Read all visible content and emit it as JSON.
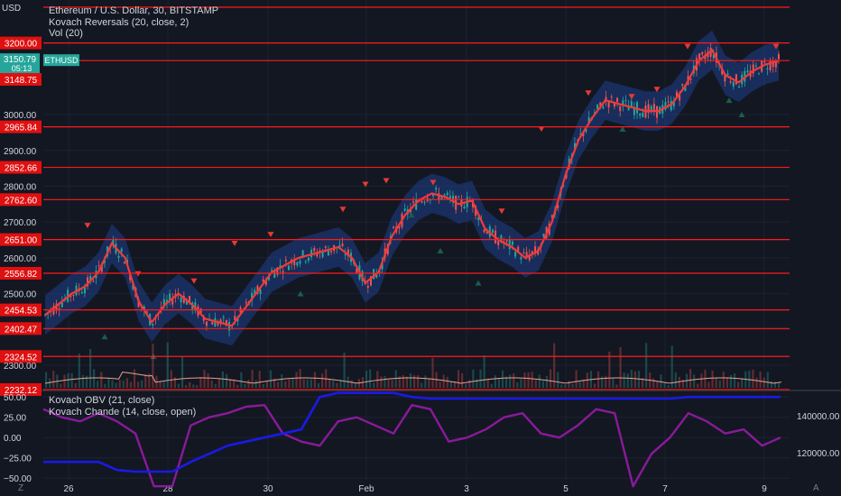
{
  "window": {
    "currency_button": "USD",
    "zoom_key": "Z",
    "autoscale_key": "A"
  },
  "legends": {
    "symbol": "Ethereum / U.S. Dollar, 30, BITSTAMP",
    "indicator_1": "Kovach Reversals (20, close, 2)",
    "indicator_2": "Vol (20)",
    "indicator_3": "Kovach OBV (21, close)",
    "indicator_4": "Kovach Chande (14, close, open)"
  },
  "price_badge": {
    "price": "3150.79",
    "countdown": "05:13",
    "symbol_tag": "ETHUSD",
    "color": "#26a69a"
  },
  "colors": {
    "background": "#131722",
    "grid": "#1e2230",
    "level_line": "#ff1a1a",
    "level_tag": "#e01010",
    "band_fill": "#1e3f8a",
    "center_line": "#ef3b3b",
    "candle_up": "#26a69a",
    "candle_down": "#ef5350",
    "reversal_down": "#e53935",
    "reversal_up": "#1b5e4b",
    "obv": "#1a1ae6",
    "chande": "#8a1a9a",
    "volume_ma": "#e8a090"
  },
  "chart_data": {
    "type": "line",
    "series": [
      {
        "kind": "price",
        "values": [
          2440,
          2470,
          2500,
          2520,
          2560,
          2640,
          2600,
          2480,
          2420,
          2470,
          2500,
          2470,
          2430,
          2420,
          2410,
          2460,
          2510,
          2560,
          2580,
          2600,
          2610,
          2620,
          2630,
          2600,
          2530,
          2560,
          2660,
          2720,
          2760,
          2780,
          2770,
          2750,
          2760,
          2680,
          2650,
          2630,
          2600,
          2620,
          2700,
          2830,
          2930,
          2990,
          3040,
          3030,
          3020,
          3010,
          3010,
          3030,
          3080,
          3150,
          3180,
          3110,
          3090,
          3120,
          3140,
          3150
        ]
      },
      {
        "kind": "obv",
        "values": [
          -30,
          -30,
          -30,
          -30,
          -40,
          -42,
          -42,
          -42,
          -30,
          -20,
          -10,
          -5,
          0,
          5,
          10,
          50,
          55,
          55,
          55,
          55,
          50,
          48,
          48,
          48,
          48,
          48,
          48,
          48,
          48,
          48,
          48,
          48,
          48,
          48,
          48,
          50,
          50,
          50,
          50,
          50,
          50
        ]
      },
      {
        "kind": "chande",
        "values": [
          35,
          25,
          20,
          30,
          20,
          5,
          -60,
          -60,
          15,
          25,
          30,
          38,
          40,
          5,
          -5,
          -10,
          20,
          25,
          15,
          5,
          40,
          35,
          -5,
          0,
          10,
          25,
          30,
          5,
          0,
          15,
          35,
          30,
          -60,
          -20,
          0,
          30,
          20,
          5,
          10,
          -10,
          0
        ]
      }
    ],
    "x_ticks": [
      "26",
      "28",
      "30",
      "Feb",
      "3",
      "5",
      "7",
      "9"
    ],
    "y_ticks": [
      "3000.00",
      "2900.00",
      "2800.00",
      "2700.00",
      "2600.00",
      "2500.00",
      "2400.00",
      "2300.00"
    ],
    "y_range": [
      2232,
      3320
    ],
    "levels": [
      "3200.00",
      "2965.84",
      "2852.66",
      "2762.60",
      "2651.00",
      "2556.82",
      "2454.53",
      "2402.47",
      "2324.52",
      "2232.12"
    ],
    "current_price_label": "3148.75",
    "osc_left_ticks": [
      "50.00",
      "25.00",
      "0.00",
      "−25.00",
      "−50.00"
    ],
    "osc_right_ticks": [
      "140000.00",
      "120000.00"
    ],
    "osc_range": [
      -52,
      58
    ],
    "grid": true
  }
}
